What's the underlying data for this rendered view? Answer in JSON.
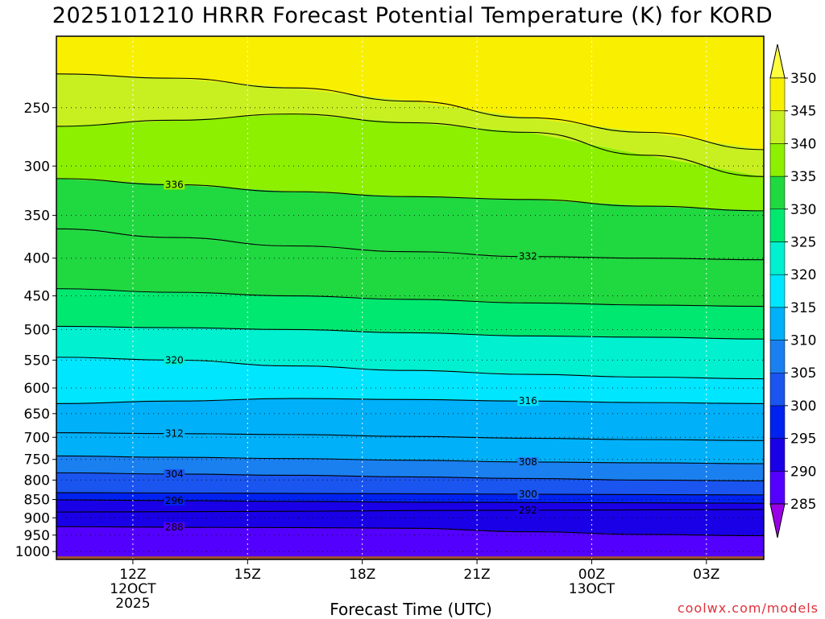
{
  "header": {
    "title": "2025101210 HRRR Forecast Potential Temperature (K) for KORD"
  },
  "footer": {
    "credit": "coolwx.com/models"
  },
  "chart_data": {
    "type": "heatmap",
    "title": "2025101210 HRRR Forecast Potential Temperature (K) for KORD",
    "xlabel": "Forecast Time (UTC)",
    "ylabel": "",
    "xlim": [
      10,
      28.5
    ],
    "ylim": [
      1025,
      200
    ],
    "y_scale": "log",
    "y_ticks": [
      250,
      300,
      350,
      400,
      450,
      500,
      550,
      600,
      650,
      700,
      750,
      800,
      850,
      900,
      950,
      1000
    ],
    "x_ticks": [
      {
        "hour": 12,
        "label": "12Z",
        "sub1": "12OCT",
        "sub2": "2025"
      },
      {
        "hour": 15,
        "label": "15Z",
        "sub1": "",
        "sub2": ""
      },
      {
        "hour": 18,
        "label": "18Z",
        "sub1": "",
        "sub2": ""
      },
      {
        "hour": 21,
        "label": "21Z",
        "sub1": "",
        "sub2": ""
      },
      {
        "hour": 24,
        "label": "00Z",
        "sub1": "13OCT",
        "sub2": ""
      },
      {
        "hour": 27,
        "label": "03Z",
        "sub1": "",
        "sub2": ""
      }
    ],
    "grid": true,
    "colorbar": {
      "levels": [
        285,
        290,
        295,
        300,
        305,
        310,
        315,
        320,
        325,
        330,
        335,
        340,
        345,
        350
      ],
      "colors": [
        "#9a00e8",
        "#5400ff",
        "#1a00e6",
        "#0022f0",
        "#1a55f0",
        "#1a80f0",
        "#00b0f8",
        "#00e6ff",
        "#00f0d0",
        "#00e870",
        "#20d840",
        "#8cf000",
        "#c8f020",
        "#f8f000",
        "#ffff40"
      ]
    },
    "surface_color": "#a0522d",
    "contours": [
      {
        "value": 288,
        "pressure": [
          925,
          927,
          928,
          930,
          940,
          948,
          952
        ]
      },
      {
        "value": 292,
        "pressure": [
          884,
          883,
          882,
          880,
          879,
          878,
          877
        ]
      },
      {
        "value": 296,
        "pressure": [
          851,
          853,
          855,
          857,
          858,
          859,
          860
        ]
      },
      {
        "value": 300,
        "pressure": [
          832,
          833,
          834,
          835,
          836,
          837,
          838
        ]
      },
      {
        "value": 304,
        "pressure": [
          782,
          785,
          788,
          792,
          796,
          800,
          802
        ]
      },
      {
        "value": 308,
        "pressure": [
          742,
          745,
          748,
          752,
          756,
          758,
          760
        ]
      },
      {
        "value": 312,
        "pressure": [
          690,
          692,
          694,
          698,
          702,
          705,
          707
        ]
      },
      {
        "value": 316,
        "pressure": [
          630,
          625,
          620,
          622,
          625,
          628,
          630
        ]
      },
      {
        "value": 320,
        "pressure": [
          545,
          550,
          560,
          568,
          575,
          580,
          583
        ]
      },
      {
        "value": 324,
        "pressure": [
          495,
          497,
          500,
          505,
          510,
          512,
          515
        ]
      },
      {
        "value": 328,
        "pressure": [
          440,
          445,
          450,
          455,
          460,
          463,
          465
        ]
      },
      {
        "value": 332,
        "pressure": [
          365,
          375,
          385,
          392,
          398,
          400,
          402
        ]
      },
      {
        "value": 336,
        "pressure": [
          312,
          318,
          325,
          330,
          333,
          340,
          345
        ]
      },
      {
        "value": 340,
        "pressure": [
          265,
          260,
          255,
          262,
          270,
          290,
          310
        ]
      },
      {
        "value": 344,
        "pressure": [
          225,
          228,
          235,
          245,
          258,
          270,
          285
        ]
      }
    ],
    "contour_label_values": [
      288,
      292,
      296,
      300,
      304,
      308,
      312,
      316,
      320,
      332,
      336
    ]
  }
}
